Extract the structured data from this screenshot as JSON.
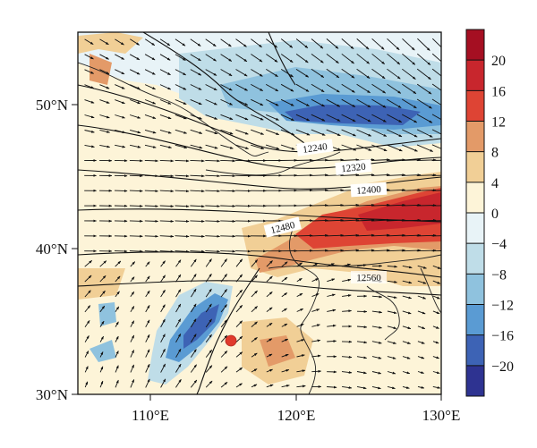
{
  "map": {
    "lat_labels": [
      "50°N",
      "40°N",
      "30°N"
    ],
    "lon_labels": [
      "110°E",
      "120°E",
      "130°E"
    ],
    "extent": {
      "lon": [
        105,
        130
      ],
      "lat": [
        30,
        55
      ]
    }
  },
  "colorbar": {
    "ticks": [
      "20",
      "16",
      "12",
      "8",
      "4",
      "0",
      "−4",
      "−8",
      "−12",
      "−16",
      "−20"
    ],
    "colors": [
      "#a50f22",
      "#c8262d",
      "#de4434",
      "#e39a68",
      "#f1cf96",
      "#fdf4d8",
      "#e8f3f7",
      "#bfdde8",
      "#8fc2de",
      "#5a9bd3",
      "#3d63b5",
      "#2e3391"
    ]
  },
  "contours": {
    "labels": [
      "12240",
      "12320",
      "12400",
      "12480",
      "12560"
    ]
  },
  "marker": {
    "color": "#e03a2c"
  }
}
